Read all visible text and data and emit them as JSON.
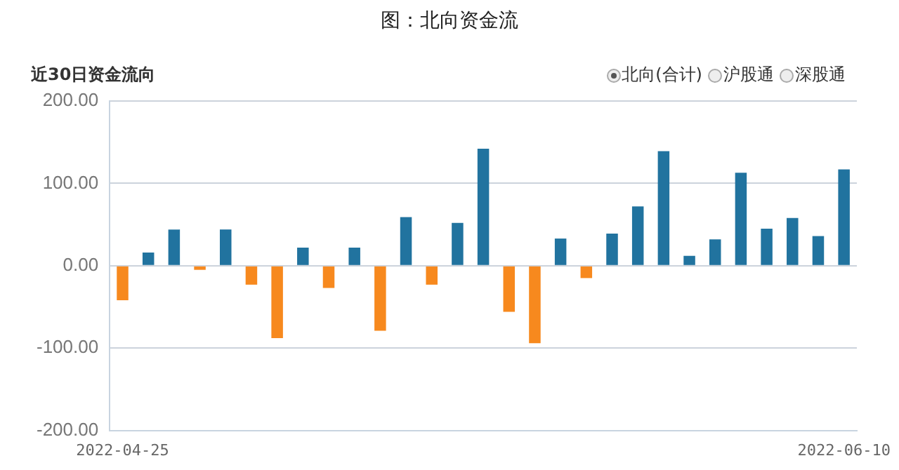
{
  "chart_data": {
    "type": "bar",
    "title": "图：北向资金流",
    "subtitle": "近30日资金流向",
    "annotations": [
      "北向(合计)",
      "沪股通",
      "深股通"
    ],
    "categories": [
      "2022-04-25",
      null,
      null,
      null,
      null,
      null,
      null,
      null,
      null,
      null,
      null,
      null,
      null,
      null,
      null,
      null,
      null,
      null,
      null,
      null,
      null,
      null,
      null,
      null,
      null,
      null,
      null,
      null,
      "2022-06-10"
    ],
    "values": [
      -42,
      16,
      44,
      -5,
      44,
      -23,
      -88,
      22,
      -27,
      22,
      -79,
      59,
      -23,
      52,
      142,
      -56,
      -94,
      33,
      -15,
      39,
      72,
      139,
      12,
      32,
      113,
      45,
      58,
      36,
      117
    ],
    "colors": [
      "#f7891e",
      "#21739f",
      "#21739f",
      "#f7891e",
      "#21739f",
      "#f7891e",
      "#f7891e",
      "#21739f",
      "#f7891e",
      "#21739f",
      "#f7891e",
      "#21739f",
      "#f7891e",
      "#21739f",
      "#21739f",
      "#f7891e",
      "#f7891e",
      "#21739f",
      "#f7891e",
      "#21739f",
      "#21739f",
      "#21739f",
      "#21739f",
      "#21739f",
      "#21739f",
      "#21739f",
      "#21739f",
      "#21739f",
      "#21739f"
    ],
    "ylim": [
      -200,
      200
    ],
    "yticks": [
      {
        "value": -200,
        "label": "-200.00"
      },
      {
        "value": -100,
        "label": "-100.00"
      },
      {
        "value": 0,
        "label": "0.00"
      },
      {
        "value": 100,
        "label": "100.00"
      },
      {
        "value": 200,
        "label": "200.00"
      }
    ],
    "grid": "y",
    "legend": false
  }
}
